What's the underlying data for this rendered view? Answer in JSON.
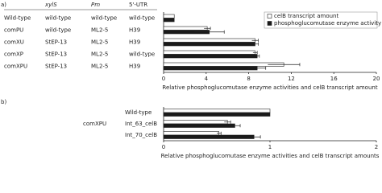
{
  "chart_data": [
    {
      "type": "bar",
      "orientation": "horizontal",
      "panel": "a)",
      "table": {
        "columns": [
          "xylS",
          "Pm",
          "5'-UTR"
        ],
        "rows": [
          [
            "wild-type",
            "wild-type",
            "wild-type"
          ],
          [
            "wild-type",
            "ML2-5",
            "H39"
          ],
          [
            "StEP-13",
            "ML2-5",
            "H39"
          ],
          [
            "StEP-13",
            "ML2-5",
            "wild-type"
          ],
          [
            "StEP-13",
            "ML2-5",
            "H39"
          ]
        ]
      },
      "categories": [
        "Wild-type",
        "comPU",
        "comXU",
        "comXP",
        "comXPU"
      ],
      "series": [
        {
          "name": "celB transcript amount",
          "color": "#ffffff",
          "values": [
            1.0,
            4.1,
            8.6,
            8.6,
            11.3
          ],
          "errors": [
            null,
            0.3,
            0.3,
            0.2,
            1.5
          ]
        },
        {
          "name": "phosphoglucomutase enzyme activity",
          "color": "#1a1a1a",
          "values": [
            1.0,
            4.3,
            8.6,
            8.8,
            8.8
          ],
          "errors": [
            null,
            1.4,
            0.3,
            0.2,
            0.8
          ]
        }
      ],
      "xlim": [
        0,
        20
      ],
      "xticks": [
        0,
        4,
        8,
        12,
        16,
        20
      ],
      "x_label": "Relative phosphoglucomutase enzyme activities and celB transcript amount",
      "legend": "upper right"
    },
    {
      "type": "bar",
      "orientation": "horizontal",
      "panel": "b)",
      "group_label": "comXPU",
      "categories": [
        "Wild-type",
        "Int_63_celB",
        "Int_70_celB"
      ],
      "series": [
        {
          "name": "celB transcript amount",
          "color": "#ffffff",
          "values": [
            1.0,
            0.6,
            0.52
          ],
          "errors": [
            null,
            0.03,
            0.02
          ]
        },
        {
          "name": "phosphoglucomutase enzyme activity",
          "color": "#1a1a1a",
          "values": [
            1.0,
            0.67,
            0.85
          ],
          "errors": [
            null,
            0.05,
            0.06
          ]
        }
      ],
      "xlim": [
        0,
        2
      ],
      "xticks": [
        0,
        1,
        2
      ],
      "x_label": "Relative phosphoglucomutase enzyme activities and celB transcript amounts"
    }
  ]
}
